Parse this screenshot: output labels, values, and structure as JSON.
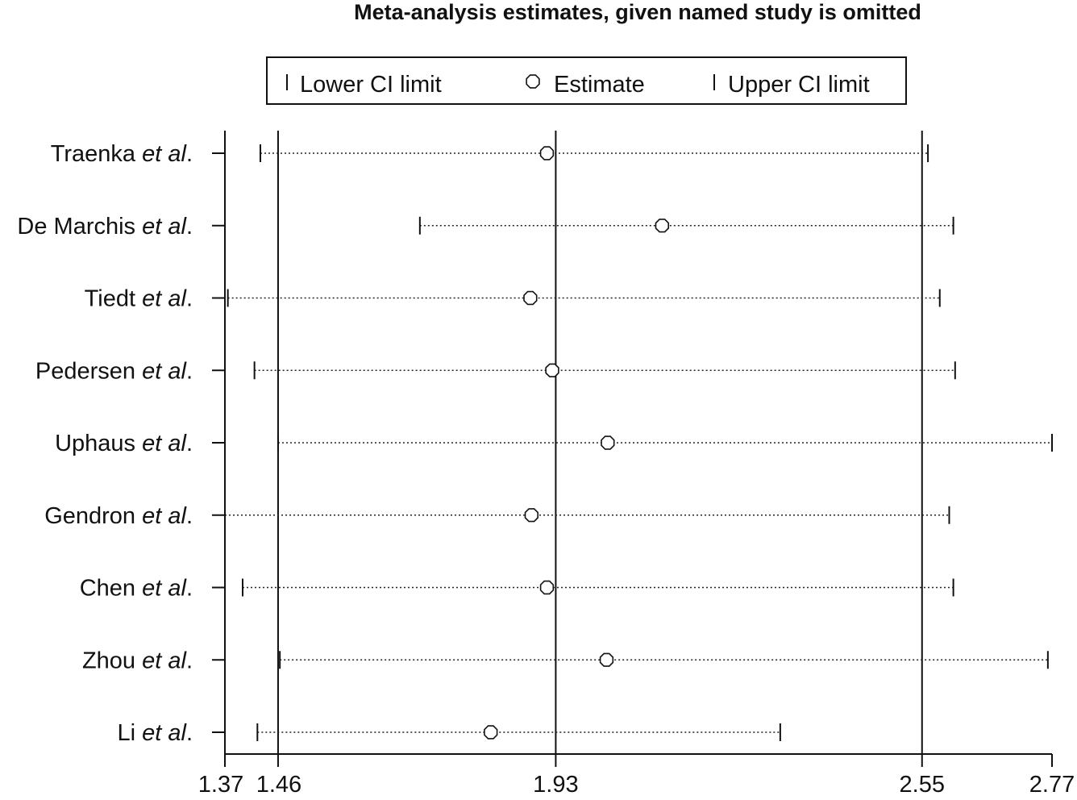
{
  "chart_data": {
    "type": "forest",
    "title": "Meta-analysis estimates, given named study is omitted",
    "legend": {
      "placement": "top",
      "items": [
        {
          "symbol": "lower-cap",
          "label": "Lower CI limit"
        },
        {
          "symbol": "circle",
          "label": "Estimate"
        },
        {
          "symbol": "upper-cap",
          "label": "Upper CI limit"
        }
      ]
    },
    "xlim": [
      1.37,
      2.77
    ],
    "x_ticks": [
      {
        "value": 1.37,
        "label": "1.37"
      },
      {
        "value": 1.46,
        "label": "1.46"
      },
      {
        "value": 1.93,
        "label": "1.93"
      },
      {
        "value": 2.55,
        "label": "2.55"
      },
      {
        "value": 2.77,
        "label": "2.77"
      }
    ],
    "reference_lines": [
      1.46,
      1.93,
      2.55
    ],
    "studies": [
      {
        "name": "Traenka",
        "suffix": "et al",
        "lower": 1.43,
        "estimate": 1.915,
        "upper": 2.56
      },
      {
        "name": "De Marchis",
        "suffix": "et al",
        "lower": 1.7,
        "estimate": 2.11,
        "upper": 2.603
      },
      {
        "name": "Tiedt",
        "suffix": "et al",
        "lower": 1.375,
        "estimate": 1.887,
        "upper": 2.58
      },
      {
        "name": "Pedersen",
        "suffix": "et al",
        "lower": 1.42,
        "estimate": 1.924,
        "upper": 2.606
      },
      {
        "name": "Uphaus",
        "suffix": "et al",
        "lower": 1.46,
        "estimate": 2.018,
        "upper": 2.77
      },
      {
        "name": "Gendron",
        "suffix": "et al",
        "lower": 1.37,
        "estimate": 1.889,
        "upper": 2.596
      },
      {
        "name": "Chen",
        "suffix": "et al",
        "lower": 1.4,
        "estimate": 1.915,
        "upper": 2.603
      },
      {
        "name": "Zhou",
        "suffix": "et al",
        "lower": 1.463,
        "estimate": 2.016,
        "upper": 2.763
      },
      {
        "name": "Li",
        "suffix": "et al",
        "lower": 1.425,
        "estimate": 1.82,
        "upper": 2.31
      }
    ]
  }
}
